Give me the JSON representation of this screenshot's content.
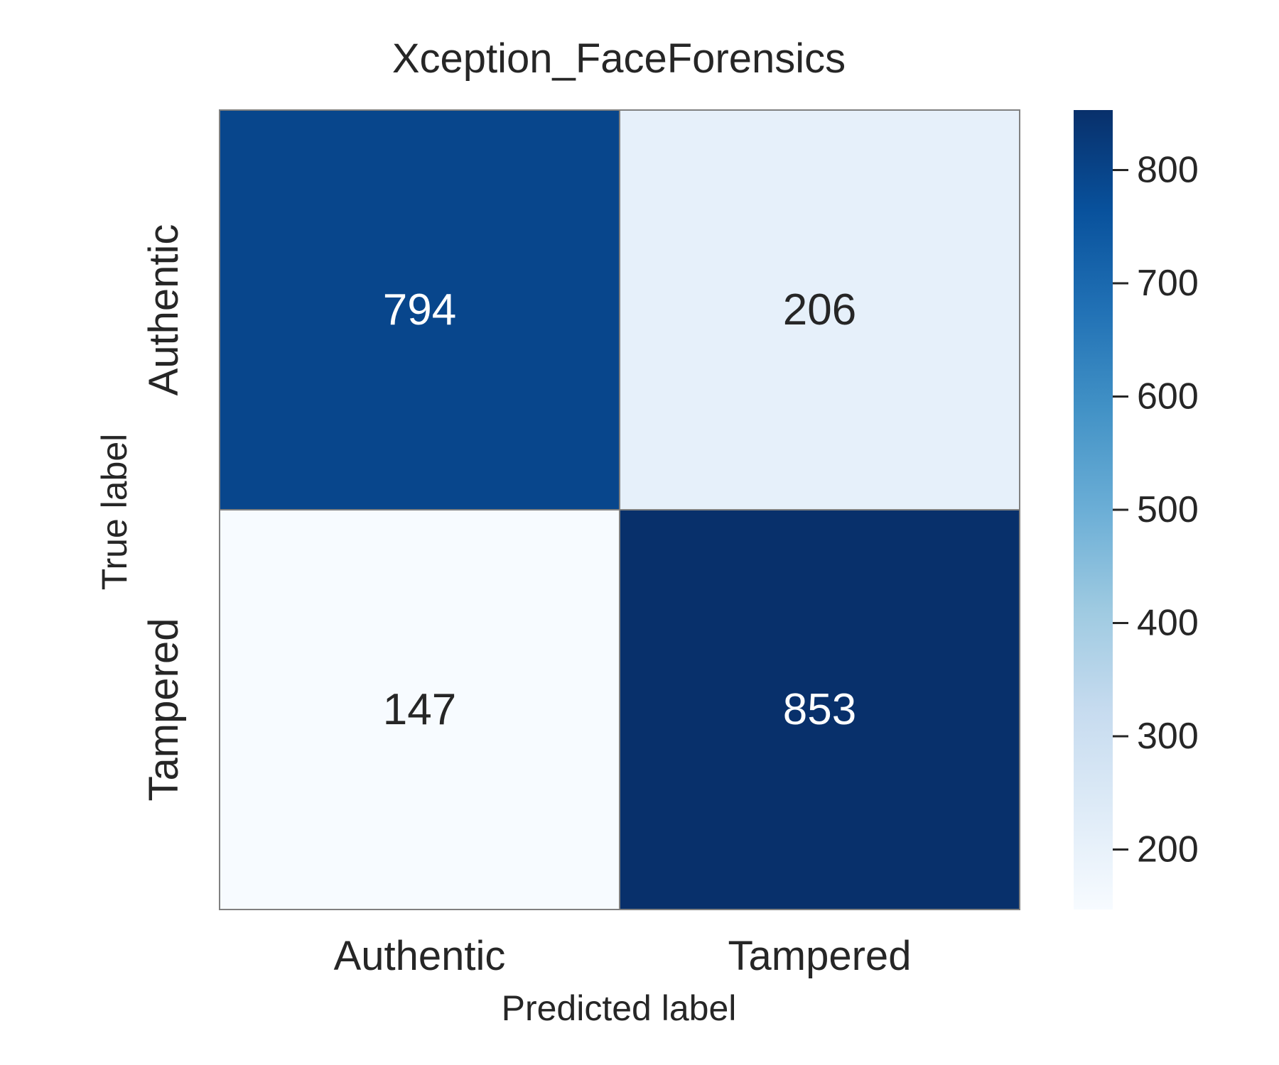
{
  "chart_data": {
    "type": "heatmap",
    "title": "Xception_FaceForensics",
    "xlabel": "Predicted label",
    "ylabel": "True label",
    "x_categories": [
      "Authentic",
      "Tampered"
    ],
    "y_categories": [
      "Authentic",
      "Tampered"
    ],
    "values": [
      [
        794,
        206
      ],
      [
        147,
        853
      ]
    ],
    "colormap": "Blues",
    "color_range": [
      147,
      853
    ],
    "colorbar": {
      "ticks": [
        200,
        300,
        400,
        500,
        600,
        700,
        800
      ],
      "tick_labels": [
        "200",
        "300",
        "400",
        "500",
        "600",
        "700",
        "800"
      ]
    },
    "colors": {
      "cell_text_dark": "#262626",
      "cell_text_light": "#ffffff",
      "cell_border": "#808080"
    },
    "grid": false
  }
}
